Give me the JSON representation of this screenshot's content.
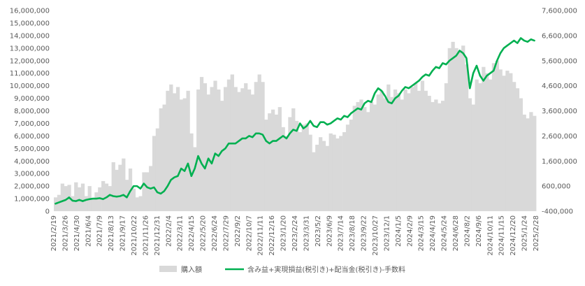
{
  "chart_data": {
    "type": "bar+line",
    "y_left": {
      "ylim": [
        0,
        16000000
      ],
      "ticks": [
        "0",
        "1,000,000",
        "2,000,000",
        "3,000,000",
        "4,000,000",
        "5,000,000",
        "6,000,000",
        "7,000,000",
        "8,000,000",
        "9,000,000",
        "10,000,000",
        "11,000,000",
        "12,000,000",
        "13,000,000",
        "14,000,000",
        "15,000,000",
        "16,000,000"
      ]
    },
    "y_right": {
      "ylim": [
        -400000,
        7600000
      ],
      "ticks": [
        {
          "label": "-400,000",
          "value": -400000,
          "color": "#ff0000"
        },
        {
          "label": "600,000",
          "value": 600000
        },
        {
          "label": "1,600,000",
          "value": 1600000
        },
        {
          "label": "2,600,000",
          "value": 2600000
        },
        {
          "label": "3,600,000",
          "value": 3600000
        },
        {
          "label": "4,600,000",
          "value": 4600000
        },
        {
          "label": "5,600,000",
          "value": 5600000
        },
        {
          "label": "6,600,000",
          "value": 6600000
        },
        {
          "label": "7,600,000",
          "value": 7600000
        }
      ]
    },
    "x_ticks": [
      "2021/2/19",
      "2021/3/26",
      "2021/4/30",
      "2021/6/4",
      "2021/7/9",
      "2021/8/13",
      "2021/9/17",
      "2021/10/22",
      "2021/11/26",
      "2021/12/31",
      "2022/2/4",
      "2022/3/11",
      "2022/4/15",
      "2022/5/20",
      "2022/6/24",
      "2022/7/29",
      "2022/9/2",
      "2022/10/7",
      "2022/11/11",
      "2022/12/16",
      "2023/1/20",
      "2023/2/24",
      "2023/3/31",
      "2023/5/2",
      "2023/6/9",
      "2023/7/14",
      "2023/8/18",
      "2023/9/22",
      "2023/10/27",
      "2023/12/1",
      "2024/1/5",
      "2024/2/9",
      "2024/3/15",
      "2024/4/19",
      "2024/5/24",
      "2024/6/28",
      "2024/8/2",
      "2024/9/6",
      "2024/10/11",
      "2024/11/15",
      "2024/12/20",
      "2025/1/24",
      "2025/2/28"
    ],
    "legend": [
      {
        "name": "購入額",
        "type": "bar",
        "color": "#d9d9d9"
      },
      {
        "name": "含み益+実現損益(税引き)+配当金(税引き)-手数料",
        "type": "line",
        "color": "#00b050"
      }
    ],
    "series": [
      {
        "name": "購入額",
        "type": "bar",
        "axis": "left",
        "values": [
          1100000,
          1300000,
          2200000,
          2000000,
          2100000,
          1200000,
          2300000,
          1900000,
          2200000,
          1200000,
          2000000,
          1000000,
          1500000,
          1900000,
          2400000,
          2200000,
          2000000,
          3900000,
          3300000,
          3700000,
          4200000,
          2500000,
          3400000,
          1800000,
          1100000,
          1200000,
          3100000,
          3100000,
          3600000,
          6000000,
          6600000,
          8200000,
          8500000,
          9600000,
          10100000,
          9400000,
          9900000,
          8900000,
          9000000,
          9600000,
          6200000,
          5100000,
          9700000,
          10700000,
          10200000,
          9300000,
          9900000,
          10400000,
          9700000,
          8800000,
          9900000,
          10500000,
          10900000,
          9900000,
          9500000,
          9800000,
          10200000,
          9700000,
          9300000,
          10300000,
          10900000,
          10300000,
          7300000,
          7800000,
          8100000,
          7700000,
          8300000,
          6700000,
          6000000,
          7500000,
          8200000,
          7200000,
          6300000,
          6900000,
          7000000,
          6100000,
          4700000,
          5300000,
          5900000,
          5600000,
          5200000,
          6200000,
          6100000,
          5800000,
          6000000,
          6300000,
          6900000,
          7300000,
          8400000,
          8700000,
          8900000,
          8300000,
          7900000,
          8700000,
          8500000,
          9300000,
          9600000,
          9000000,
          10100000,
          9100000,
          9700000,
          9400000,
          8900000,
          9700000,
          9400000,
          9900000,
          10200000,
          9600000,
          10400000,
          9600000,
          9200000,
          8700000,
          8900000,
          8600000,
          8800000,
          10200000,
          13000000,
          13500000,
          13000000,
          12800000,
          13200000,
          11700000,
          9000000,
          8500000,
          10500000,
          10200000,
          11500000,
          11000000,
          10500000,
          11800000,
          12000000,
          11300000,
          10800000,
          11200000,
          11000000,
          10300000,
          9800000,
          9000000,
          7700000,
          7400000,
          7900000,
          7600000
        ]
      },
      {
        "name": "含み益+実現損益(税引き)+配当金(税引き)-手数料",
        "type": "line",
        "axis": "right",
        "values": [
          -100000,
          -50000,
          0,
          50000,
          150000,
          20000,
          0,
          50000,
          0,
          50000,
          80000,
          100000,
          100000,
          120000,
          80000,
          150000,
          250000,
          200000,
          180000,
          200000,
          250000,
          150000,
          400000,
          600000,
          600000,
          500000,
          700000,
          550000,
          500000,
          550000,
          350000,
          300000,
          400000,
          600000,
          850000,
          950000,
          1000000,
          1300000,
          1200000,
          1500000,
          1000000,
          1300000,
          1800000,
          1500000,
          1300000,
          1700000,
          1500000,
          1900000,
          1800000,
          2000000,
          2100000,
          2300000,
          2300000,
          2300000,
          2400000,
          2500000,
          2500000,
          2600000,
          2550000,
          2700000,
          2700000,
          2650000,
          2400000,
          2300000,
          2400000,
          2400000,
          2500000,
          2600000,
          2500000,
          2700000,
          2850000,
          2800000,
          3100000,
          2900000,
          3000000,
          3200000,
          3000000,
          2950000,
          3150000,
          3150000,
          3050000,
          3100000,
          3200000,
          3300000,
          3250000,
          3400000,
          3350000,
          3500000,
          3600000,
          3700000,
          3650000,
          3900000,
          4000000,
          3950000,
          4300000,
          4500000,
          4400000,
          4200000,
          3950000,
          3900000,
          4100000,
          4200000,
          4400000,
          4550000,
          4500000,
          4600000,
          4700000,
          4800000,
          4950000,
          5050000,
          5000000,
          5200000,
          5350000,
          5300000,
          5500000,
          5450000,
          5600000,
          5700000,
          5800000,
          6000000,
          5900000,
          5700000,
          4500000,
          5100000,
          5400000,
          5000000,
          4800000,
          5000000,
          5100000,
          5200000,
          5600000,
          5900000,
          6100000,
          6200000,
          6300000,
          6400000,
          6300000,
          6500000,
          6400000,
          6350000,
          6450000,
          6400000
        ]
      }
    ]
  }
}
